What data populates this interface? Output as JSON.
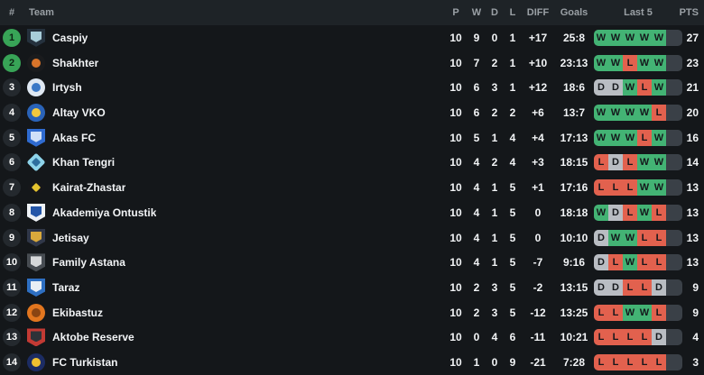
{
  "colors": {
    "form_win": "#43b374",
    "form_loss": "#e2614e",
    "form_draw": "#b9bdc3",
    "form_track": "#3a4047",
    "form_letter": "#15181c",
    "badge_promotion": "#38a457"
  },
  "header": {
    "rank": "#",
    "team": "Team",
    "played": "P",
    "wins": "W",
    "draws": "D",
    "losses": "L",
    "diff": "DIFF",
    "goals": "Goals",
    "last5": "Last 5",
    "points": "PTS"
  },
  "standings": [
    {
      "rank": "1",
      "badge": "promotion",
      "team": "Caspiy",
      "played": "10",
      "wins": "9",
      "draws": "0",
      "losses": "1",
      "diff": "+17",
      "goals": "25:8",
      "last5": [
        "W",
        "W",
        "W",
        "W",
        "W"
      ],
      "points": "27",
      "logo": {
        "shape": "shield",
        "bg": "#25313d",
        "accent": "#a8cdd9"
      }
    },
    {
      "rank": "2",
      "badge": "promotion",
      "team": "Shakhter",
      "played": "10",
      "wins": "7",
      "draws": "2",
      "losses": "1",
      "diff": "+10",
      "goals": "23:13",
      "last5": [
        "W",
        "W",
        "L",
        "W",
        "W"
      ],
      "points": "23",
      "logo": {
        "shape": "circle",
        "bg": "#1a1b1d",
        "accent": "#d8742a"
      }
    },
    {
      "rank": "3",
      "badge": "dark",
      "team": "Irtysh",
      "played": "10",
      "wins": "6",
      "draws": "3",
      "losses": "1",
      "diff": "+12",
      "goals": "18:6",
      "last5": [
        "D",
        "D",
        "W",
        "L",
        "W"
      ],
      "points": "21",
      "logo": {
        "shape": "circle",
        "bg": "#dfe8f2",
        "accent": "#3a78c6"
      }
    },
    {
      "rank": "4",
      "badge": "dark",
      "team": "Altay VKO",
      "played": "10",
      "wins": "6",
      "draws": "2",
      "losses": "2",
      "diff": "+6",
      "goals": "13:7",
      "last5": [
        "W",
        "W",
        "W",
        "W",
        "L"
      ],
      "points": "20",
      "logo": {
        "shape": "circle",
        "bg": "#2a63b8",
        "accent": "#f3c83d"
      }
    },
    {
      "rank": "5",
      "badge": "dark",
      "team": "Akas FC",
      "played": "10",
      "wins": "5",
      "draws": "1",
      "losses": "4",
      "diff": "+4",
      "goals": "17:13",
      "last5": [
        "W",
        "W",
        "W",
        "L",
        "W"
      ],
      "points": "16",
      "logo": {
        "shape": "shield",
        "bg": "#2f6bd0",
        "accent": "#cfe0f8"
      }
    },
    {
      "rank": "6",
      "badge": "dark",
      "team": "Khan Tengri",
      "played": "10",
      "wins": "4",
      "draws": "2",
      "losses": "4",
      "diff": "+3",
      "goals": "18:15",
      "last5": [
        "L",
        "D",
        "L",
        "W",
        "W"
      ],
      "points": "14",
      "logo": {
        "shape": "diamond",
        "bg": "#8ed4ea",
        "accent": "#2e6f9e"
      }
    },
    {
      "rank": "7",
      "badge": "dark",
      "team": "Kairat-Zhastar",
      "played": "10",
      "wins": "4",
      "draws": "1",
      "losses": "5",
      "diff": "+1",
      "goals": "17:16",
      "last5": [
        "L",
        "L",
        "L",
        "W",
        "W"
      ],
      "points": "13",
      "logo": {
        "shape": "diamond",
        "bg": "#16171a",
        "accent": "#e5c42f"
      }
    },
    {
      "rank": "8",
      "badge": "dark",
      "team": "Akademiya Ontustik",
      "played": "10",
      "wins": "4",
      "draws": "1",
      "losses": "5",
      "diff": "0",
      "goals": "18:18",
      "last5": [
        "W",
        "D",
        "L",
        "W",
        "L"
      ],
      "points": "13",
      "logo": {
        "shape": "shield",
        "bg": "#eef2f6",
        "accent": "#2456a8"
      }
    },
    {
      "rank": "9",
      "badge": "dark",
      "team": "Jetisay",
      "played": "10",
      "wins": "4",
      "draws": "1",
      "losses": "5",
      "diff": "0",
      "goals": "10:10",
      "last5": [
        "D",
        "W",
        "W",
        "L",
        "L"
      ],
      "points": "13",
      "logo": {
        "shape": "shield",
        "bg": "#303748",
        "accent": "#d9a93c"
      }
    },
    {
      "rank": "10",
      "badge": "dark",
      "team": "Family Astana",
      "played": "10",
      "wins": "4",
      "draws": "1",
      "losses": "5",
      "diff": "-7",
      "goals": "9:16",
      "last5": [
        "D",
        "L",
        "W",
        "L",
        "L"
      ],
      "points": "13",
      "logo": {
        "shape": "shield",
        "bg": "#474c52",
        "accent": "#d6d8da"
      }
    },
    {
      "rank": "11",
      "badge": "dark",
      "team": "Taraz",
      "played": "10",
      "wins": "2",
      "draws": "3",
      "losses": "5",
      "diff": "-2",
      "goals": "13:15",
      "last5": [
        "D",
        "D",
        "L",
        "L",
        "D"
      ],
      "points": "9",
      "logo": {
        "shape": "shield",
        "bg": "#2e6fc2",
        "accent": "#e8eef5"
      }
    },
    {
      "rank": "12",
      "badge": "dark",
      "team": "Ekibastuz",
      "played": "10",
      "wins": "2",
      "draws": "3",
      "losses": "5",
      "diff": "-12",
      "goals": "13:25",
      "last5": [
        "L",
        "L",
        "W",
        "W",
        "L"
      ],
      "points": "9",
      "logo": {
        "shape": "circle",
        "bg": "#e2761f",
        "accent": "#8a4412"
      }
    },
    {
      "rank": "13",
      "badge": "dark",
      "team": "Aktobe Reserve",
      "played": "10",
      "wins": "0",
      "draws": "4",
      "losses": "6",
      "diff": "-11",
      "goals": "10:21",
      "last5": [
        "L",
        "L",
        "L",
        "L",
        "D"
      ],
      "points": "4",
      "logo": {
        "shape": "shield",
        "bg": "#c23a34",
        "accent": "#2e3238"
      }
    },
    {
      "rank": "14",
      "badge": "dark",
      "team": "FC Turkistan",
      "played": "10",
      "wins": "1",
      "draws": "0",
      "losses": "9",
      "diff": "-21",
      "goals": "7:28",
      "last5": [
        "L",
        "L",
        "L",
        "L",
        "L"
      ],
      "points": "3",
      "logo": {
        "shape": "circle",
        "bg": "#1c2c63",
        "accent": "#f0c030"
      }
    }
  ]
}
